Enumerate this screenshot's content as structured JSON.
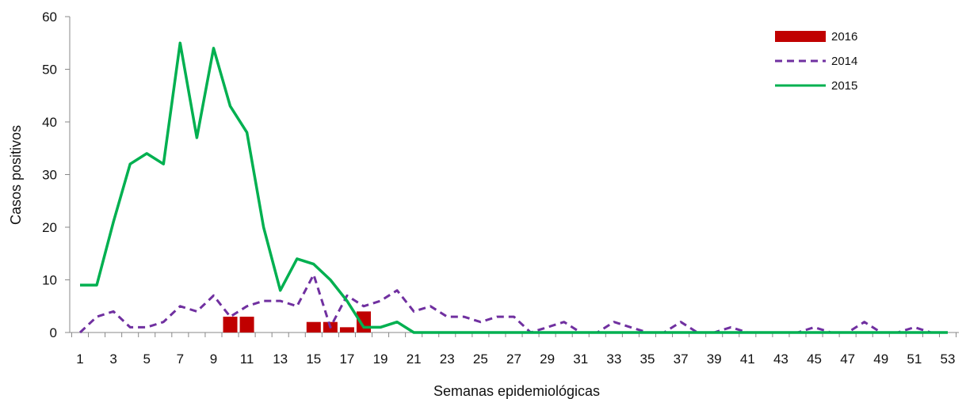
{
  "chart_data": {
    "type": "line",
    "xlabel": "Semanas epidemiológicas",
    "ylabel": "Casos positivos",
    "ylim": [
      0,
      60
    ],
    "yticks": [
      0,
      10,
      20,
      30,
      40,
      50,
      60
    ],
    "x": [
      1,
      2,
      3,
      4,
      5,
      6,
      7,
      8,
      9,
      10,
      11,
      12,
      13,
      14,
      15,
      16,
      17,
      18,
      19,
      20,
      21,
      22,
      23,
      24,
      25,
      26,
      27,
      28,
      29,
      30,
      31,
      32,
      33,
      34,
      35,
      36,
      37,
      38,
      39,
      40,
      41,
      42,
      43,
      44,
      45,
      46,
      47,
      48,
      49,
      50,
      51,
      52,
      53
    ],
    "xticks": [
      "1",
      "3",
      "5",
      "7",
      "9",
      "11",
      "13",
      "15",
      "17",
      "19",
      "21",
      "23",
      "25",
      "27",
      "29",
      "31",
      "33",
      "35",
      "37",
      "39",
      "41",
      "43",
      "45",
      "47",
      "49",
      "51",
      "53"
    ],
    "grid": false,
    "legend_position": "top-right",
    "series": [
      {
        "name": "2016",
        "type": "bar",
        "color": "#C00000",
        "x": [
          10,
          11,
          15,
          16,
          17,
          18
        ],
        "values": [
          3,
          3,
          2,
          2,
          1,
          4
        ]
      },
      {
        "name": "2014",
        "type": "line",
        "style": "dashed",
        "color": "#7030A0",
        "values": [
          0,
          3,
          4,
          1,
          1,
          2,
          5,
          4,
          7,
          3,
          5,
          6,
          6,
          5,
          11,
          1,
          7,
          5,
          6,
          8,
          4,
          5,
          3,
          3,
          2,
          3,
          3,
          0,
          1,
          2,
          0,
          0,
          2,
          1,
          0,
          0,
          2,
          0,
          0,
          1,
          0,
          0,
          0,
          0,
          1,
          0,
          0,
          2,
          0,
          0,
          1,
          0,
          0
        ]
      },
      {
        "name": "2015",
        "type": "line",
        "style": "solid",
        "color": "#00B050",
        "values": [
          9,
          9,
          21,
          32,
          34,
          32,
          55,
          37,
          54,
          43,
          38,
          20,
          8,
          14,
          13,
          10,
          6,
          1,
          1,
          2,
          0,
          0,
          0,
          0,
          0,
          0,
          0,
          0,
          0,
          0,
          0,
          0,
          0,
          0,
          0,
          0,
          0,
          0,
          0,
          0,
          0,
          0,
          0,
          0,
          0,
          0,
          0,
          0,
          0,
          0,
          0,
          0,
          0
        ]
      }
    ]
  }
}
